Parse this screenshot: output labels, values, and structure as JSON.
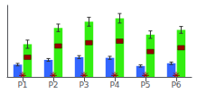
{
  "chart_data": {
    "type": "bar",
    "categories": [
      "P1",
      "P2",
      "P3",
      "P4",
      "P5",
      "P6"
    ],
    "ylim": [
      0,
      10.5
    ],
    "yticks": [],
    "tick_labels": "x",
    "grid": false,
    "series": [
      {
        "type": "bar",
        "color": "#3366ff",
        "values": [
          1.8,
          2.5,
          2.9,
          2.8,
          1.6,
          2.0
        ],
        "errors": [
          0.18,
          0.2,
          0.22,
          0.22,
          0.16,
          0.18
        ]
      },
      {
        "type": "bar",
        "color": "#33ee11",
        "values": [
          4.8,
          7.2,
          8.1,
          8.6,
          6.2,
          6.9
        ],
        "errors": [
          0.6,
          0.55,
          0.65,
          0.7,
          0.55,
          0.5
        ]
      },
      {
        "type": "scatter",
        "marker": "square",
        "color": "#990000",
        "values": [
          2.88,
          4.536,
          5.022,
          5.246,
          3.72,
          4.278
        ]
      },
      {
        "type": "scatter",
        "marker": "asterisk",
        "color": "#990000",
        "values": [
          0.22,
          0.22,
          0.22,
          0.22,
          0.22,
          0.22
        ]
      }
    ]
  }
}
